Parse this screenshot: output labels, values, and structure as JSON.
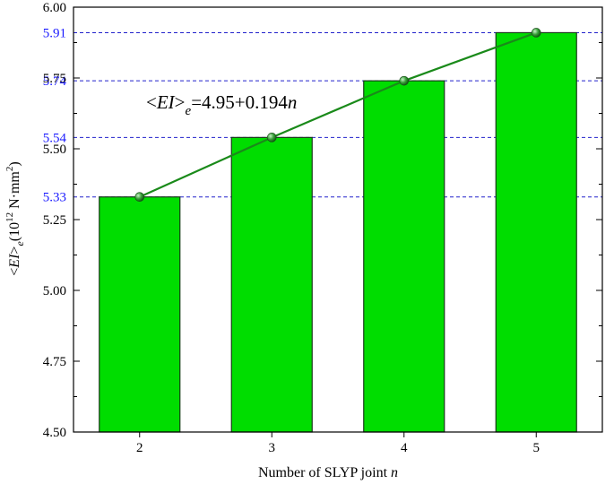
{
  "chart_data": {
    "type": "bar",
    "categories": [
      "2",
      "3",
      "4",
      "5"
    ],
    "x": [
      2,
      3,
      4,
      5
    ],
    "values": [
      5.33,
      5.54,
      5.74,
      5.91
    ],
    "ylim": [
      4.5,
      6.0
    ],
    "yticks": [
      4.5,
      4.75,
      5.0,
      5.25,
      5.5,
      5.75,
      6.0
    ],
    "ytick_labels": [
      "4.50",
      "4.75",
      "5.00",
      "5.25",
      "5.50",
      "5.75",
      "6.00"
    ],
    "reference_lines": [
      5.33,
      5.54,
      5.74,
      5.91
    ],
    "reference_labels": [
      "5.33",
      "5.54",
      "5.74",
      "5.91"
    ],
    "xlabel_text": "Number of SLYP joint ",
    "xlabel_var": "n",
    "ylabel": {
      "lt": "<",
      "var": "EI",
      "gt": ">",
      "sub": "e",
      "open": "(10",
      "exp": "12",
      "unit": " N·mm",
      "unit_exp": "2",
      "close": ")"
    },
    "fit_line": {
      "intercept": 4.95,
      "slope": 0.194,
      "label": {
        "lt": "<",
        "var": "EI",
        "gt": ">",
        "sub": "e",
        "rest": "=4.95+0.194",
        "n": "n"
      }
    },
    "colors": {
      "bar_fill": "#00dd00",
      "bar_stroke": "#1a3a1a",
      "fit_line": "#1a8a1a",
      "reference_line": "#2222cc",
      "reference_label": "#1a1aff"
    },
    "grid": false,
    "legend": "none"
  }
}
